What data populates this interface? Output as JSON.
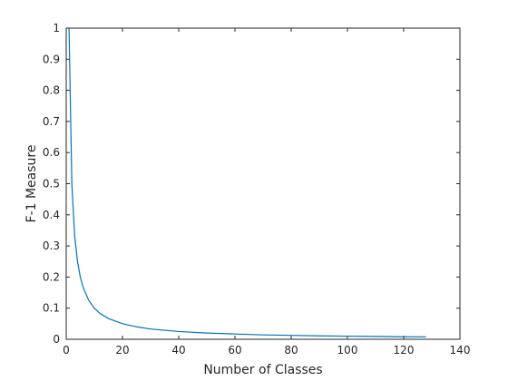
{
  "chart_data": {
    "type": "line",
    "title": "",
    "xlabel": "Number of Classes",
    "ylabel": "F-1 Measure",
    "xlim": [
      0,
      140
    ],
    "ylim": [
      0,
      1
    ],
    "xticks": [
      0,
      20,
      40,
      60,
      80,
      100,
      120,
      140
    ],
    "yticks": [
      0,
      0.1,
      0.2,
      0.3,
      0.4,
      0.5,
      0.6,
      0.7,
      0.8,
      0.9,
      1
    ],
    "xtick_labels": [
      "0",
      "20",
      "40",
      "60",
      "80",
      "100",
      "120",
      "140"
    ],
    "ytick_labels": [
      "0",
      "0.1",
      "0.2",
      "0.3",
      "0.4",
      "0.5",
      "0.6",
      "0.7",
      "0.8",
      "0.9",
      "1"
    ],
    "grid": false,
    "box": true,
    "series": [
      {
        "color": "#0072bd",
        "x": [
          1,
          2,
          3,
          4,
          5,
          6,
          8,
          10,
          12,
          15,
          20,
          25,
          30,
          40,
          50,
          60,
          70,
          80,
          90,
          100,
          110,
          120,
          128
        ],
        "y": [
          1,
          0.5,
          0.333,
          0.25,
          0.2,
          0.167,
          0.125,
          0.1,
          0.083,
          0.067,
          0.05,
          0.04,
          0.033,
          0.025,
          0.02,
          0.017,
          0.014,
          0.0125,
          0.011,
          0.01,
          0.009,
          0.008,
          0.0078
        ]
      }
    ]
  }
}
